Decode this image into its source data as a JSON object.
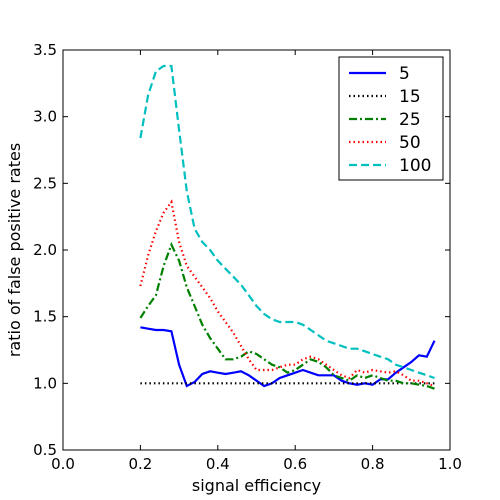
{
  "chart_data": {
    "type": "line",
    "xlabel": "signal efficiency",
    "ylabel": "ratio of false positive rates",
    "xlim": [
      0.0,
      1.0
    ],
    "ylim": [
      0.5,
      3.5
    ],
    "xticks": [
      0.0,
      0.2,
      0.4,
      0.6,
      0.8,
      1.0
    ],
    "xtick_labels": [
      "0.0",
      "0.2",
      "0.4",
      "0.6",
      "0.8",
      "1.0"
    ],
    "yticks": [
      0.5,
      1.0,
      1.5,
      2.0,
      2.5,
      3.0,
      3.5
    ],
    "ytick_labels": [
      "0.5",
      "1.0",
      "1.5",
      "2.0",
      "2.5",
      "3.0",
      "3.5"
    ],
    "grid": false,
    "legend_position": "top-right",
    "series": [
      {
        "name": "5",
        "color": "#0000ff",
        "style": "solid",
        "x": [
          0.2,
          0.22,
          0.24,
          0.26,
          0.28,
          0.3,
          0.32,
          0.34,
          0.36,
          0.38,
          0.4,
          0.42,
          0.44,
          0.46,
          0.48,
          0.5,
          0.52,
          0.54,
          0.56,
          0.58,
          0.6,
          0.62,
          0.64,
          0.66,
          0.68,
          0.7,
          0.72,
          0.74,
          0.76,
          0.78,
          0.8,
          0.82,
          0.84,
          0.86,
          0.88,
          0.9,
          0.92,
          0.94,
          0.96
        ],
        "y": [
          1.42,
          1.41,
          1.4,
          1.4,
          1.39,
          1.14,
          0.98,
          1.01,
          1.07,
          1.09,
          1.08,
          1.07,
          1.08,
          1.09,
          1.06,
          1.02,
          0.98,
          1.0,
          1.04,
          1.06,
          1.08,
          1.1,
          1.08,
          1.06,
          1.06,
          1.06,
          1.02,
          1.0,
          0.99,
          1.0,
          0.99,
          1.03,
          1.03,
          1.08,
          1.12,
          1.16,
          1.21,
          1.2,
          1.32
        ]
      },
      {
        "name": "15",
        "color": "#000000",
        "style": "dotted",
        "x": [
          0.2,
          0.96
        ],
        "y": [
          1.0,
          1.0
        ]
      },
      {
        "name": "25",
        "color": "#008000",
        "style": "dashdot",
        "x": [
          0.2,
          0.22,
          0.24,
          0.26,
          0.28,
          0.3,
          0.32,
          0.34,
          0.36,
          0.38,
          0.4,
          0.42,
          0.44,
          0.46,
          0.48,
          0.5,
          0.52,
          0.54,
          0.56,
          0.58,
          0.6,
          0.62,
          0.64,
          0.66,
          0.68,
          0.7,
          0.72,
          0.74,
          0.76,
          0.78,
          0.8,
          0.82,
          0.84,
          0.86,
          0.88,
          0.9,
          0.92,
          0.94,
          0.96
        ],
        "y": [
          1.49,
          1.58,
          1.66,
          1.88,
          2.04,
          1.92,
          1.72,
          1.58,
          1.44,
          1.34,
          1.26,
          1.18,
          1.18,
          1.2,
          1.24,
          1.22,
          1.18,
          1.14,
          1.12,
          1.08,
          1.1,
          1.14,
          1.18,
          1.16,
          1.12,
          1.06,
          1.04,
          1.02,
          1.06,
          1.04,
          1.06,
          1.04,
          1.02,
          1.02,
          1.0,
          1.0,
          0.99,
          0.98,
          0.96
        ]
      },
      {
        "name": "50",
        "color": "#ff0000",
        "style": "dotted",
        "x": [
          0.2,
          0.22,
          0.24,
          0.26,
          0.28,
          0.3,
          0.32,
          0.34,
          0.36,
          0.38,
          0.4,
          0.42,
          0.44,
          0.46,
          0.48,
          0.5,
          0.52,
          0.54,
          0.56,
          0.58,
          0.6,
          0.62,
          0.64,
          0.66,
          0.68,
          0.7,
          0.72,
          0.74,
          0.76,
          0.78,
          0.8,
          0.82,
          0.84,
          0.86,
          0.88,
          0.9,
          0.92,
          0.94,
          0.96
        ],
        "y": [
          1.73,
          1.96,
          2.14,
          2.28,
          2.36,
          2.06,
          1.88,
          1.8,
          1.72,
          1.64,
          1.54,
          1.46,
          1.38,
          1.28,
          1.18,
          1.1,
          1.1,
          1.1,
          1.12,
          1.14,
          1.14,
          1.18,
          1.2,
          1.18,
          1.14,
          1.1,
          1.06,
          1.04,
          1.1,
          1.08,
          1.1,
          1.09,
          1.08,
          1.09,
          1.06,
          1.02,
          1.02,
          1.0,
          0.98
        ]
      },
      {
        "name": "100",
        "color": "#00bfbf",
        "style": "dashed",
        "x": [
          0.2,
          0.22,
          0.24,
          0.26,
          0.28,
          0.3,
          0.32,
          0.34,
          0.36,
          0.38,
          0.4,
          0.42,
          0.44,
          0.46,
          0.48,
          0.5,
          0.52,
          0.54,
          0.56,
          0.58,
          0.6,
          0.62,
          0.64,
          0.66,
          0.68,
          0.7,
          0.72,
          0.74,
          0.76,
          0.78,
          0.8,
          0.82,
          0.84,
          0.86,
          0.88,
          0.9,
          0.92,
          0.94,
          0.96
        ],
        "y": [
          2.84,
          3.16,
          3.34,
          3.38,
          3.38,
          2.9,
          2.44,
          2.16,
          2.06,
          2.0,
          1.92,
          1.86,
          1.8,
          1.74,
          1.66,
          1.58,
          1.52,
          1.48,
          1.46,
          1.46,
          1.46,
          1.44,
          1.4,
          1.36,
          1.32,
          1.3,
          1.28,
          1.26,
          1.26,
          1.24,
          1.22,
          1.2,
          1.18,
          1.14,
          1.12,
          1.1,
          1.08,
          1.06,
          1.04
        ]
      }
    ]
  }
}
